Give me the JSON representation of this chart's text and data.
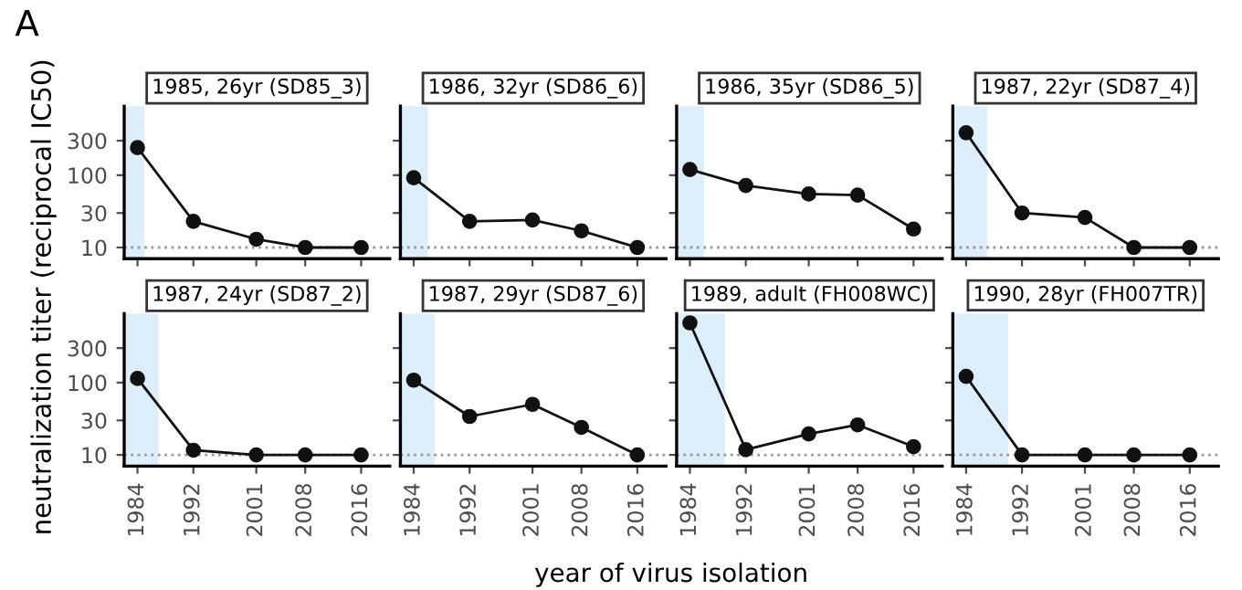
{
  "chart_data": [
    {
      "type": "line",
      "title": "1985, 26yr (SD85_3)",
      "ylabel": "neutralization titer (reciprocal IC50)",
      "annotations": [
        "A"
      ],
      "x": [
        1984,
        1992,
        2001,
        2008,
        2016
      ],
      "series": [
        {
          "color": "#111111",
          "values": [
            241,
            23,
            13,
            10,
            10
          ]
        }
      ],
      "xlim": [
        1982.1,
        2020.1
      ],
      "ylim": [
        7,
        900
      ],
      "log": true,
      "xticks": [
        1984,
        1992,
        2001,
        2008,
        2016
      ],
      "yticks": [
        10,
        30,
        100,
        300
      ],
      "marker": "circle",
      "ref_lines": [
        {
          "axis": "y",
          "value": 10,
          "color": "#999999",
          "line_style": "dotted"
        }
      ],
      "bands": [
        {
          "axis": "x",
          "from": 1982.1,
          "to": 1985,
          "color": "#dceefa"
        }
      ],
      "tick_labels": "y",
      "grid": false,
      "legend": false
    },
    {
      "type": "line",
      "title": "1986, 32yr (SD86_6)",
      "x": [
        1984,
        1992,
        2001,
        2008,
        2016
      ],
      "series": [
        {
          "color": "#111111",
          "values": [
            92,
            23,
            24,
            17,
            10
          ]
        }
      ],
      "xlim": [
        1982.1,
        2020.1
      ],
      "ylim": [
        7,
        900
      ],
      "log": true,
      "xticks": [
        1984,
        1992,
        2001,
        2008,
        2016
      ],
      "yticks": [
        10,
        30,
        100,
        300
      ],
      "marker": "circle",
      "ref_lines": [
        {
          "axis": "y",
          "value": 10,
          "color": "#999999",
          "line_style": "dotted"
        }
      ],
      "bands": [
        {
          "axis": "x",
          "from": 1982.1,
          "to": 1986,
          "color": "#dceefa"
        }
      ],
      "tick_labels": false,
      "grid": false,
      "legend": false
    },
    {
      "type": "line",
      "title": "1986, 35yr (SD86_5)",
      "x": [
        1984,
        1992,
        2001,
        2008,
        2016
      ],
      "series": [
        {
          "color": "#111111",
          "values": [
            120,
            72,
            55,
            53,
            18
          ]
        }
      ],
      "xlim": [
        1982.1,
        2020.1
      ],
      "ylim": [
        7,
        900
      ],
      "log": true,
      "xticks": [
        1984,
        1992,
        2001,
        2008,
        2016
      ],
      "yticks": [
        10,
        30,
        100,
        300
      ],
      "marker": "circle",
      "ref_lines": [
        {
          "axis": "y",
          "value": 10,
          "color": "#999999",
          "line_style": "dotted"
        }
      ],
      "bands": [
        {
          "axis": "x",
          "from": 1982.1,
          "to": 1986,
          "color": "#dceefa"
        }
      ],
      "tick_labels": false,
      "grid": false,
      "legend": false
    },
    {
      "type": "line",
      "title": "1987, 22yr (SD87_4)",
      "x": [
        1984,
        1992,
        2001,
        2008,
        2016
      ],
      "series": [
        {
          "color": "#111111",
          "values": [
            387,
            30,
            26,
            10,
            10
          ]
        }
      ],
      "xlim": [
        1982.1,
        2020.1
      ],
      "ylim": [
        7,
        900
      ],
      "log": true,
      "xticks": [
        1984,
        1992,
        2001,
        2008,
        2016
      ],
      "yticks": [
        10,
        30,
        100,
        300
      ],
      "marker": "circle",
      "ref_lines": [
        {
          "axis": "y",
          "value": 10,
          "color": "#999999",
          "line_style": "dotted"
        }
      ],
      "bands": [
        {
          "axis": "x",
          "from": 1982.1,
          "to": 1987,
          "color": "#dceefa"
        }
      ],
      "tick_labels": false,
      "grid": false,
      "legend": false
    },
    {
      "type": "line",
      "title": "1987, 24yr (SD87_2)",
      "x": [
        1984,
        1992,
        2001,
        2008,
        2016
      ],
      "series": [
        {
          "color": "#111111",
          "values": [
            114,
            11.6,
            10,
            10,
            10
          ]
        }
      ],
      "xlim": [
        1982.1,
        2020.1
      ],
      "ylim": [
        7,
        900
      ],
      "log": true,
      "xticks": [
        1984,
        1992,
        2001,
        2008,
        2016
      ],
      "yticks": [
        10,
        30,
        100,
        300
      ],
      "marker": "circle",
      "ref_lines": [
        {
          "axis": "y",
          "value": 10,
          "color": "#999999",
          "line_style": "dotted"
        }
      ],
      "bands": [
        {
          "axis": "x",
          "from": 1982.1,
          "to": 1987,
          "color": "#dceefa"
        }
      ],
      "grid": false,
      "legend": false
    },
    {
      "type": "line",
      "title": "1987, 29yr (SD87_6)",
      "xlabel": "year of virus isolation",
      "x": [
        1984,
        1992,
        2001,
        2008,
        2016
      ],
      "series": [
        {
          "color": "#111111",
          "values": [
            108,
            34,
            50,
            24,
            10
          ]
        }
      ],
      "xlim": [
        1982.1,
        2020.1
      ],
      "ylim": [
        7,
        900
      ],
      "log": true,
      "xticks": [
        1984,
        1992,
        2001,
        2008,
        2016
      ],
      "yticks": [
        10,
        30,
        100,
        300
      ],
      "marker": "circle",
      "ref_lines": [
        {
          "axis": "y",
          "value": 10,
          "color": "#999999",
          "line_style": "dotted"
        }
      ],
      "bands": [
        {
          "axis": "x",
          "from": 1982.1,
          "to": 1987,
          "color": "#dceefa"
        }
      ],
      "tick_labels": "x",
      "grid": false,
      "legend": false
    },
    {
      "type": "line",
      "title": "1989, adult (FH008WC)",
      "x": [
        1984,
        1992,
        2001,
        2008,
        2016
      ],
      "series": [
        {
          "color": "#111111",
          "values": [
            670,
            11.8,
            19.5,
            26,
            13
          ]
        }
      ],
      "xlim": [
        1982.1,
        2020.1
      ],
      "ylim": [
        7,
        900
      ],
      "log": true,
      "xticks": [
        1984,
        1992,
        2001,
        2008,
        2016
      ],
      "yticks": [
        10,
        30,
        100,
        300
      ],
      "marker": "circle",
      "ref_lines": [
        {
          "axis": "y",
          "value": 10,
          "color": "#999999",
          "line_style": "dotted"
        }
      ],
      "bands": [
        {
          "axis": "x",
          "from": 1982.1,
          "to": 1989,
          "color": "#dceefa"
        }
      ],
      "tick_labels": "x",
      "grid": false,
      "legend": false
    },
    {
      "type": "line",
      "title": "1990, 28yr (FH007TR)",
      "x": [
        1984,
        1992,
        2001,
        2008,
        2016
      ],
      "series": [
        {
          "color": "#111111",
          "values": [
            122,
            10,
            10,
            10,
            10
          ]
        }
      ],
      "xlim": [
        1982.1,
        2020.1
      ],
      "ylim": [
        7,
        900
      ],
      "log": true,
      "xticks": [
        1984,
        1992,
        2001,
        2008,
        2016
      ],
      "yticks": [
        10,
        30,
        100,
        300
      ],
      "marker": "circle",
      "ref_lines": [
        {
          "axis": "y",
          "value": 10,
          "color": "#999999",
          "line_style": "dotted"
        }
      ],
      "bands": [
        {
          "axis": "x",
          "from": 1982.1,
          "to": 1990,
          "color": "#dceefa"
        }
      ],
      "tick_labels": "x",
      "grid": false,
      "legend": false
    }
  ]
}
